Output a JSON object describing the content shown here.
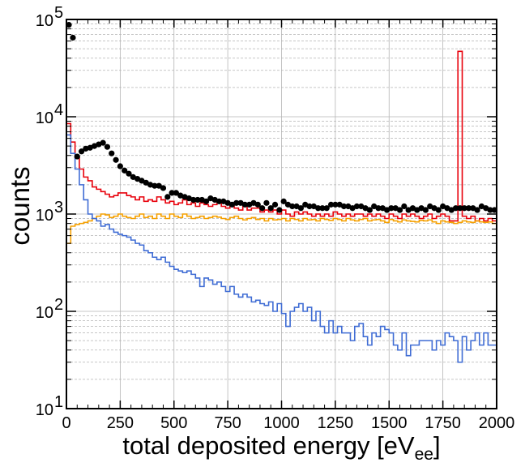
{
  "chart_data": {
    "type": "line",
    "title": "",
    "xlabel": "total deposited energy [eV",
    "xlabel_sub": "ee",
    "xlabel_close": "]",
    "ylabel": "counts",
    "xlim": [
      0,
      2000
    ],
    "ylim": [
      10,
      100000
    ],
    "yscale": "log",
    "grid": true,
    "x_ticks": [
      "0",
      "250",
      "500",
      "750",
      "1000",
      "1250",
      "1500",
      "1750",
      "2000"
    ],
    "y_ticks": [
      {
        "base": "10",
        "exp": "1"
      },
      {
        "base": "10",
        "exp": "2"
      },
      {
        "base": "10",
        "exp": "3"
      },
      {
        "base": "10",
        "exp": "4"
      },
      {
        "base": "10",
        "exp": "5"
      }
    ],
    "bin_width": 20,
    "colors": {
      "data": "#000000",
      "red": "#e8000b",
      "orange": "#f5a000",
      "blue": "#3f6cd4",
      "grid": "#b4b4b4"
    },
    "series": [
      {
        "kind": "points",
        "color": "#000000",
        "x": [
          0,
          20,
          40,
          60,
          80,
          100,
          120,
          140,
          160,
          180,
          200,
          220,
          240,
          260,
          280,
          300,
          320,
          340,
          360,
          380,
          400,
          420,
          440,
          460,
          480,
          500,
          520,
          540,
          560,
          580,
          600,
          620,
          640,
          660,
          680,
          700,
          720,
          740,
          760,
          780,
          800,
          820,
          840,
          860,
          880,
          900,
          920,
          940,
          960,
          980,
          1000,
          1020,
          1040,
          1060,
          1080,
          1100,
          1120,
          1140,
          1160,
          1180,
          1200,
          1220,
          1240,
          1260,
          1280,
          1300,
          1320,
          1340,
          1360,
          1380,
          1400,
          1420,
          1440,
          1460,
          1480,
          1500,
          1520,
          1540,
          1560,
          1580,
          1600,
          1620,
          1640,
          1660,
          1680,
          1700,
          1720,
          1740,
          1760,
          1780,
          1800,
          1820,
          1840,
          1860,
          1880,
          1900,
          1920,
          1940,
          1960,
          1980
        ],
        "y": [
          88000,
          65000,
          3900,
          4400,
          4700,
          4800,
          5000,
          5200,
          5400,
          4900,
          4200,
          3600,
          3100,
          2800,
          2600,
          2400,
          2300,
          2200,
          2100,
          2000,
          1950,
          1950,
          1850,
          1500,
          1650,
          1650,
          1550,
          1500,
          1450,
          1400,
          1400,
          1400,
          1350,
          1450,
          1400,
          1350,
          1350,
          1300,
          1250,
          1300,
          1300,
          1250,
          1250,
          1300,
          1250,
          1150,
          1300,
          1150,
          1250,
          1100,
          1350,
          1250,
          1200,
          1200,
          1150,
          1250,
          1200,
          1200,
          1150,
          1150,
          1150,
          1250,
          1250,
          1250,
          1200,
          1200,
          1150,
          1200,
          1200,
          1150,
          1100,
          1200,
          1150,
          1150,
          1100,
          1150,
          1150,
          1100,
          1200,
          1100,
          1150,
          1100,
          1150,
          1100,
          1200,
          1150,
          1100,
          1200,
          1150,
          1100,
          1150,
          1150,
          1150,
          1150,
          1150,
          1100,
          1200,
          1150,
          1100,
          1100
        ]
      },
      {
        "kind": "step",
        "color": "#e8000b",
        "x": [
          0,
          20,
          40,
          60,
          80,
          100,
          120,
          140,
          160,
          180,
          200,
          220,
          240,
          260,
          280,
          300,
          320,
          340,
          360,
          380,
          400,
          420,
          440,
          460,
          480,
          500,
          520,
          540,
          560,
          580,
          600,
          620,
          640,
          660,
          680,
          700,
          720,
          740,
          760,
          780,
          800,
          820,
          840,
          860,
          880,
          900,
          920,
          940,
          960,
          980,
          1000,
          1020,
          1040,
          1060,
          1080,
          1100,
          1120,
          1140,
          1160,
          1180,
          1200,
          1220,
          1240,
          1260,
          1280,
          1300,
          1320,
          1340,
          1360,
          1380,
          1400,
          1420,
          1440,
          1460,
          1480,
          1500,
          1520,
          1540,
          1560,
          1580,
          1600,
          1620,
          1640,
          1660,
          1680,
          1700,
          1720,
          1740,
          1760,
          1780,
          1800,
          1820,
          1840,
          1860,
          1880,
          1900,
          1920,
          1940,
          1960,
          1980
        ],
        "y": [
          8500,
          5500,
          3800,
          2900,
          2400,
          2200,
          1900,
          1800,
          1700,
          1600,
          1500,
          1550,
          1650,
          1650,
          1550,
          1500,
          1400,
          1500,
          1350,
          1400,
          1350,
          1500,
          1400,
          1300,
          1350,
          1250,
          1300,
          1400,
          1250,
          1300,
          1200,
          1300,
          1250,
          1200,
          1250,
          1350,
          1200,
          1150,
          1200,
          1150,
          1100,
          1200,
          1100,
          1150,
          1150,
          1050,
          1100,
          1050,
          1100,
          1000,
          1100,
          1000,
          950,
          1050,
          1000,
          1050,
          1000,
          950,
          1000,
          950,
          1000,
          950,
          1050,
          1000,
          950,
          1000,
          950,
          1000,
          1000,
          950,
          1000,
          950,
          1000,
          950,
          900,
          1000,
          950,
          900,
          1000,
          950,
          1000,
          950,
          900,
          950,
          1000,
          900,
          950,
          1000,
          950,
          850,
          850,
          47000,
          950,
          900,
          950,
          850,
          900,
          850,
          900,
          850
        ]
      },
      {
        "kind": "step",
        "color": "#f5a000",
        "x": [
          0,
          20,
          40,
          60,
          80,
          100,
          120,
          140,
          160,
          180,
          200,
          220,
          240,
          260,
          280,
          300,
          320,
          340,
          360,
          380,
          400,
          420,
          440,
          460,
          480,
          500,
          520,
          540,
          560,
          580,
          600,
          620,
          640,
          660,
          680,
          700,
          720,
          740,
          760,
          780,
          800,
          820,
          840,
          860,
          880,
          900,
          920,
          940,
          960,
          980,
          1000,
          1020,
          1040,
          1060,
          1080,
          1100,
          1120,
          1140,
          1160,
          1180,
          1200,
          1220,
          1240,
          1260,
          1280,
          1300,
          1320,
          1340,
          1360,
          1380,
          1400,
          1420,
          1440,
          1460,
          1480,
          1500,
          1520,
          1540,
          1560,
          1580,
          1600,
          1620,
          1640,
          1660,
          1680,
          1700,
          1720,
          1740,
          1760,
          1780,
          1800,
          1820,
          1840,
          1860,
          1880,
          1900,
          1920,
          1940,
          1960,
          1980
        ],
        "y": [
          500,
          750,
          780,
          800,
          820,
          850,
          900,
          950,
          1000,
          980,
          920,
          950,
          1000,
          950,
          920,
          900,
          950,
          1000,
          920,
          950,
          900,
          1000,
          950,
          900,
          1000,
          950,
          920,
          1000,
          950,
          900,
          920,
          950,
          900,
          920,
          950,
          930,
          900,
          880,
          920,
          950,
          900,
          870,
          900,
          920,
          880,
          900,
          850,
          900,
          870,
          880,
          900,
          850,
          900,
          880,
          850,
          900,
          870,
          880,
          850,
          900,
          880,
          860,
          900,
          880,
          850,
          900,
          870,
          850,
          880,
          900,
          850,
          870,
          880,
          850,
          820,
          880,
          850,
          830,
          870,
          850,
          840,
          830,
          860,
          850,
          870,
          830,
          800,
          850,
          830,
          820,
          800,
          820,
          850,
          830,
          820,
          850,
          830,
          820,
          830,
          800
        ]
      },
      {
        "kind": "step",
        "color": "#3f6cd4",
        "x": [
          0,
          20,
          40,
          60,
          80,
          100,
          120,
          140,
          160,
          180,
          200,
          220,
          240,
          260,
          280,
          300,
          320,
          340,
          360,
          380,
          400,
          420,
          440,
          460,
          480,
          500,
          520,
          540,
          560,
          580,
          600,
          620,
          640,
          660,
          680,
          700,
          720,
          740,
          760,
          780,
          800,
          820,
          840,
          860,
          880,
          900,
          920,
          940,
          960,
          980,
          1000,
          1020,
          1040,
          1060,
          1080,
          1100,
          1120,
          1140,
          1160,
          1180,
          1200,
          1220,
          1240,
          1260,
          1280,
          1300,
          1320,
          1340,
          1360,
          1380,
          1400,
          1420,
          1440,
          1460,
          1480,
          1500,
          1520,
          1540,
          1560,
          1580,
          1600,
          1620,
          1640,
          1660,
          1680,
          1700,
          1720,
          1740,
          1760,
          1780,
          1800,
          1820,
          1840,
          1860,
          1880,
          1900,
          1920,
          1940,
          1960,
          1980
        ],
        "y": [
          6500,
          4200,
          2900,
          2000,
          1400,
          1000,
          900,
          850,
          750,
          780,
          700,
          650,
          620,
          600,
          580,
          540,
          500,
          480,
          420,
          400,
          360,
          340,
          360,
          320,
          290,
          270,
          260,
          250,
          260,
          240,
          220,
          180,
          220,
          210,
          190,
          200,
          180,
          160,
          180,
          150,
          140,
          150,
          140,
          125,
          130,
          120,
          115,
          125,
          100,
          120,
          95,
          70,
          100,
          110,
          120,
          100,
          110,
          80,
          100,
          70,
          60,
          80,
          60,
          70,
          60,
          60,
          50,
          70,
          75,
          55,
          45,
          60,
          55,
          70,
          65,
          60,
          45,
          40,
          60,
          35,
          45,
          45,
          50,
          50,
          50,
          40,
          50,
          45,
          60,
          55,
          50,
          30,
          55,
          40,
          50,
          60,
          45,
          60,
          45,
          45
        ]
      }
    ]
  }
}
